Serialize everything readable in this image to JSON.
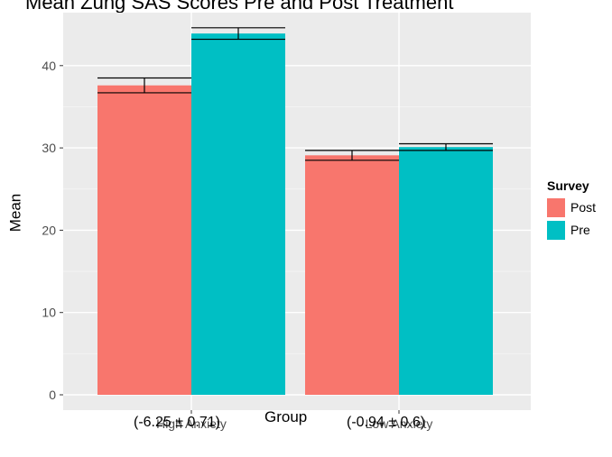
{
  "chart_data": {
    "type": "bar",
    "title": "Mean Zung SAS Scores Pre and Post Treatment",
    "xlabel": "Group",
    "ylabel": "Mean",
    "categories": [
      "High Anxiety",
      "Low Anxiety"
    ],
    "category_notes": [
      "(-6.25 ± 0.71)",
      "(-0.94 ± 0.6)"
    ],
    "legend_title": "Survey",
    "series": [
      {
        "name": "Post",
        "color": "#F8766D",
        "values": [
          37.6,
          29.1
        ],
        "err_low": [
          36.7,
          28.5
        ],
        "err_high": [
          38.5,
          29.7
        ]
      },
      {
        "name": "Pre",
        "color": "#00BFC4",
        "values": [
          43.9,
          30.1
        ],
        "err_low": [
          43.2,
          29.7
        ],
        "err_high": [
          44.6,
          30.5
        ]
      }
    ],
    "yticks": [
      0,
      10,
      20,
      30,
      40
    ],
    "ylim": [
      -1,
      46
    ],
    "grid": true,
    "legend_position": "right",
    "colors": {
      "panel": "#EBEBEB",
      "grid_major": "#FFFFFF",
      "grid_minor": "#F5F5F5",
      "tick_text": "#4D4D4D"
    }
  }
}
